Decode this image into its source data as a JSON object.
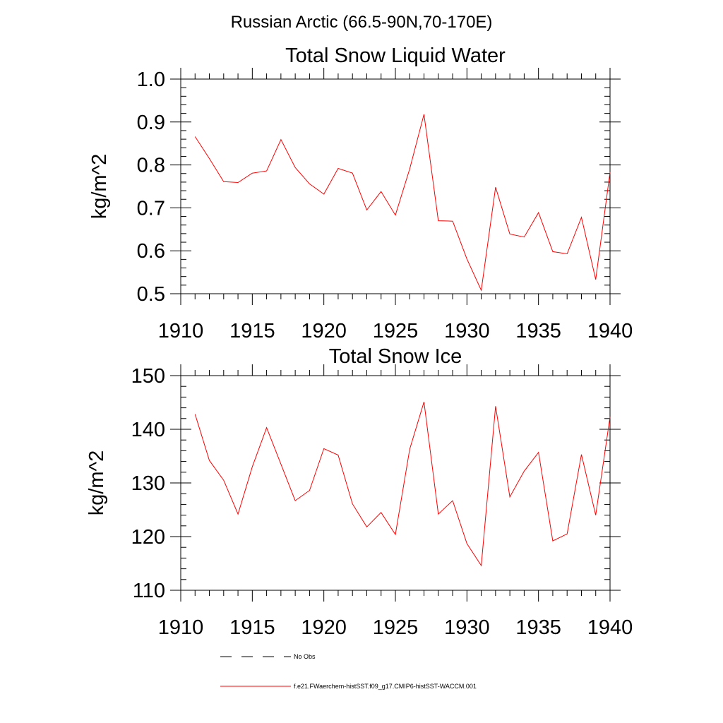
{
  "suptitle": "Russian Arctic (66.5-90N,70-170E)",
  "chart_data": [
    {
      "type": "line",
      "title": "Total Snow Liquid Water",
      "ylabel": "kg/m^2",
      "xlabel": "",
      "xlim": [
        1910,
        1940
      ],
      "ylim": [
        0.5,
        1.0
      ],
      "xticks": [
        "1910",
        "1915",
        "1920",
        "1925",
        "1930",
        "1935",
        "1940"
      ],
      "yticks": [
        "0.5",
        "0.6",
        "0.7",
        "0.8",
        "0.9",
        "1.0"
      ],
      "series": [
        {
          "color": "#ff0000",
          "x": [
            1911,
            1912,
            1913,
            1914,
            1915,
            1916,
            1917,
            1918,
            1919,
            1920,
            1921,
            1922,
            1923,
            1924,
            1925,
            1926,
            1927,
            1928,
            1929,
            1930,
            1931,
            1932,
            1933,
            1934,
            1935,
            1936,
            1937,
            1938,
            1939,
            1940
          ],
          "y": [
            0.866,
            0.815,
            0.761,
            0.759,
            0.781,
            0.786,
            0.859,
            0.794,
            0.756,
            0.732,
            0.792,
            0.781,
            0.695,
            0.738,
            0.683,
            0.791,
            0.918,
            0.67,
            0.669,
            0.581,
            0.508,
            0.748,
            0.639,
            0.632,
            0.689,
            0.598,
            0.593,
            0.678,
            0.533,
            0.783
          ]
        }
      ]
    },
    {
      "type": "line",
      "title": "Total Snow Ice",
      "ylabel": "kg/m^2",
      "xlabel": "",
      "xlim": [
        1910,
        1940
      ],
      "ylim": [
        110,
        150
      ],
      "xticks": [
        "1910",
        "1915",
        "1920",
        "1925",
        "1930",
        "1935",
        "1940"
      ],
      "yticks": [
        "110",
        "120",
        "130",
        "140",
        "150"
      ],
      "series": [
        {
          "color": "#ff0000",
          "x": [
            1911,
            1912,
            1913,
            1914,
            1915,
            1916,
            1917,
            1918,
            1919,
            1920,
            1921,
            1922,
            1923,
            1924,
            1925,
            1926,
            1927,
            1928,
            1929,
            1930,
            1931,
            1932,
            1933,
            1934,
            1935,
            1936,
            1937,
            1938,
            1939,
            1940
          ],
          "y": [
            142.8,
            134.2,
            130.5,
            124.2,
            133.0,
            140.3,
            133.5,
            126.7,
            128.6,
            136.4,
            135.2,
            126.1,
            121.8,
            124.5,
            120.4,
            136.3,
            145.1,
            124.2,
            126.7,
            118.7,
            114.6,
            144.3,
            127.4,
            132.2,
            135.7,
            119.2,
            120.5,
            135.3,
            124.0,
            142.3
          ]
        }
      ]
    }
  ],
  "legend": [
    {
      "label": "No Obs",
      "color": "#000000",
      "dash": true
    },
    {
      "label": "f.e21.FWaerchem-histSST.f09_g17.CMIP6-histSST-WACCM.001",
      "color": "#ff0000",
      "dash": false
    }
  ]
}
